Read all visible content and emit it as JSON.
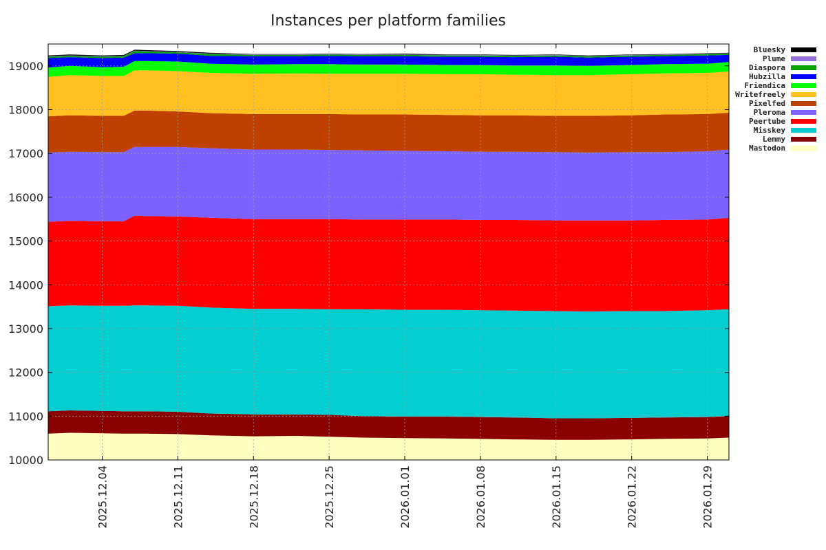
{
  "chart_data": {
    "type": "area",
    "stacked": true,
    "title": "Instances per platform families",
    "xlabel": "",
    "ylabel": "",
    "ylim": [
      10000,
      19500
    ],
    "xlim": [
      0,
      63
    ],
    "grid": true,
    "legend_position": "right",
    "yticks": [
      10000,
      11000,
      12000,
      13000,
      14000,
      15000,
      16000,
      17000,
      18000,
      19000
    ],
    "xticks": [
      {
        "label": "2025.12.04",
        "x": 5
      },
      {
        "label": "2025.12.11",
        "x": 12
      },
      {
        "label": "2025.12.18",
        "x": 19
      },
      {
        "label": "2025.12.25",
        "x": 26
      },
      {
        "label": "2026.01.01",
        "x": 33
      },
      {
        "label": "2026.01.08",
        "x": 40
      },
      {
        "label": "2026.01.15",
        "x": 47
      },
      {
        "label": "2026.01.22",
        "x": 54
      },
      {
        "label": "2026.01.29",
        "x": 61
      }
    ],
    "x": [
      0,
      2,
      5,
      7,
      8,
      9,
      12,
      15,
      19,
      23,
      26,
      29,
      33,
      37,
      40,
      43,
      47,
      50,
      54,
      57,
      61,
      63
    ],
    "boundaries": [
      {
        "name": "Mastodon",
        "color": "#ffffc0",
        "values": [
          10600,
          10620,
          10610,
          10600,
          10600,
          10600,
          10590,
          10560,
          10540,
          10550,
          10530,
          10510,
          10500,
          10490,
          10480,
          10470,
          10460,
          10460,
          10470,
          10480,
          10490,
          10510
        ]
      },
      {
        "name": "Lemmy",
        "color": "#8b0000",
        "values": [
          11110,
          11130,
          11120,
          11110,
          11110,
          11110,
          11100,
          11060,
          11040,
          11040,
          11030,
          11000,
          10990,
          10990,
          10980,
          10970,
          10950,
          10950,
          10960,
          10970,
          10980,
          11000
        ]
      },
      {
        "name": "Misskey",
        "color": "#00ced1",
        "values": [
          13510,
          13530,
          13520,
          13520,
          13530,
          13530,
          13520,
          13480,
          13450,
          13450,
          13440,
          13440,
          13430,
          13430,
          13420,
          13410,
          13400,
          13390,
          13400,
          13400,
          13420,
          13440
        ]
      },
      {
        "name": "Peertube",
        "color": "#ff0000",
        "values": [
          15440,
          15460,
          15450,
          15450,
          15580,
          15570,
          15560,
          15530,
          15500,
          15500,
          15500,
          15490,
          15490,
          15490,
          15480,
          15480,
          15470,
          15470,
          15470,
          15480,
          15490,
          15530
        ]
      },
      {
        "name": "Pleroma",
        "color": "#7b61ff",
        "values": [
          17020,
          17040,
          17030,
          17030,
          17150,
          17150,
          17150,
          17120,
          17090,
          17090,
          17080,
          17070,
          17060,
          17050,
          17040,
          17040,
          17030,
          17020,
          17030,
          17030,
          17050,
          17090
        ]
      },
      {
        "name": "Pixelfed",
        "color": "#c04000",
        "values": [
          17850,
          17870,
          17860,
          17860,
          17980,
          17980,
          17960,
          17920,
          17900,
          17900,
          17900,
          17890,
          17890,
          17880,
          17870,
          17870,
          17860,
          17860,
          17870,
          17890,
          17900,
          17930
        ]
      },
      {
        "name": "Writefreely",
        "color": "#ffc020",
        "values": [
          18750,
          18790,
          18770,
          18770,
          18900,
          18900,
          18880,
          18840,
          18820,
          18830,
          18820,
          18820,
          18820,
          18810,
          18810,
          18800,
          18790,
          18790,
          18810,
          18830,
          18840,
          18870
        ]
      },
      {
        "name": "Friendica",
        "color": "#00ff00",
        "values": [
          18960,
          19000,
          18970,
          18980,
          19110,
          19110,
          19100,
          19050,
          19030,
          19040,
          19040,
          19030,
          19030,
          19020,
          19020,
          19010,
          19010,
          19000,
          19020,
          19040,
          19050,
          19090
        ]
      },
      {
        "name": "Hubzilla",
        "color": "#0000ff",
        "values": [
          19180,
          19200,
          19180,
          19190,
          19290,
          19290,
          19280,
          19230,
          19220,
          19220,
          19230,
          19220,
          19220,
          19210,
          19210,
          19200,
          19210,
          19190,
          19210,
          19220,
          19240,
          19250
        ]
      },
      {
        "name": "Diaspora",
        "color": "#00a000",
        "values": [
          19210,
          19230,
          19210,
          19220,
          19340,
          19330,
          19310,
          19270,
          19250,
          19250,
          19260,
          19250,
          19250,
          19240,
          19240,
          19230,
          19240,
          19220,
          19240,
          19250,
          19270,
          19280
        ]
      },
      {
        "name": "Plume",
        "color": "#9370db",
        "values": [
          19220,
          19240,
          19220,
          19230,
          19350,
          19340,
          19320,
          19280,
          19260,
          19260,
          19270,
          19260,
          19260,
          19250,
          19250,
          19240,
          19250,
          19230,
          19250,
          19260,
          19280,
          19290
        ]
      },
      {
        "name": "Bluesky",
        "color": "#000000",
        "values": [
          19240,
          19260,
          19240,
          19250,
          19370,
          19360,
          19340,
          19300,
          19270,
          19270,
          19280,
          19270,
          19280,
          19260,
          19260,
          19250,
          19260,
          19240,
          19260,
          19270,
          19290,
          19300
        ]
      }
    ],
    "legend": [
      {
        "name": "Bluesky",
        "color": "#000000"
      },
      {
        "name": "Plume",
        "color": "#9370db"
      },
      {
        "name": "Diaspora",
        "color": "#00a000"
      },
      {
        "name": "Hubzilla",
        "color": "#0000ff"
      },
      {
        "name": "Friendica",
        "color": "#00ff00"
      },
      {
        "name": "Writefreely",
        "color": "#ffc020"
      },
      {
        "name": "Pixelfed",
        "color": "#c04000"
      },
      {
        "name": "Pleroma",
        "color": "#7b61ff"
      },
      {
        "name": "Peertube",
        "color": "#ff0000"
      },
      {
        "name": "Misskey",
        "color": "#00ced1"
      },
      {
        "name": "Lemmy",
        "color": "#8b0000"
      },
      {
        "name": "Mastodon",
        "color": "#ffffc0"
      }
    ]
  }
}
